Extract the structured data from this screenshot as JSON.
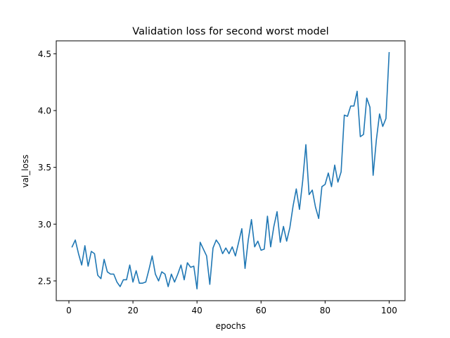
{
  "chart_data": {
    "type": "line",
    "title": "Validation loss for second worst model",
    "xlabel": "epochs",
    "ylabel": "val_loss",
    "xlim": [
      -3.95,
      104.95
    ],
    "ylim": [
      2.326,
      4.614
    ],
    "xticks": [
      0,
      20,
      40,
      60,
      80,
      100
    ],
    "yticks": [
      2.5,
      3.0,
      3.5,
      4.0,
      4.5
    ],
    "xtick_labels": [
      "0",
      "20",
      "40",
      "60",
      "80",
      "100"
    ],
    "ytick_labels": [
      "2.5",
      "3.0",
      "3.5",
      "4.0",
      "4.5"
    ],
    "grid": false,
    "legend": null,
    "series": [
      {
        "color": "#1f77b4",
        "x": [
          1,
          2,
          3,
          4,
          5,
          6,
          7,
          8,
          9,
          10,
          11,
          12,
          13,
          14,
          15,
          16,
          17,
          18,
          19,
          20,
          21,
          22,
          23,
          24,
          25,
          26,
          27,
          28,
          29,
          30,
          31,
          32,
          33,
          34,
          35,
          36,
          37,
          38,
          39,
          40,
          41,
          42,
          43,
          44,
          45,
          46,
          47,
          48,
          49,
          50,
          51,
          52,
          53,
          54,
          55,
          56,
          57,
          58,
          59,
          60,
          61,
          62,
          63,
          64,
          65,
          66,
          67,
          68,
          69,
          70,
          71,
          72,
          73,
          74,
          75,
          76,
          77,
          78,
          79,
          80,
          81,
          82,
          83,
          84,
          85,
          86,
          87,
          88,
          89,
          90,
          91,
          92,
          93,
          94,
          95,
          96,
          97,
          98,
          99,
          100
        ],
        "values": [
          2.8,
          2.86,
          2.74,
          2.64,
          2.81,
          2.63,
          2.76,
          2.74,
          2.55,
          2.52,
          2.69,
          2.58,
          2.56,
          2.56,
          2.49,
          2.45,
          2.51,
          2.51,
          2.64,
          2.49,
          2.59,
          2.48,
          2.48,
          2.49,
          2.6,
          2.72,
          2.56,
          2.5,
          2.58,
          2.56,
          2.45,
          2.56,
          2.49,
          2.56,
          2.64,
          2.51,
          2.66,
          2.62,
          2.63,
          2.43,
          2.84,
          2.78,
          2.72,
          2.47,
          2.79,
          2.86,
          2.82,
          2.74,
          2.79,
          2.74,
          2.8,
          2.72,
          2.84,
          2.96,
          2.61,
          2.86,
          3.04,
          2.8,
          2.85,
          2.77,
          2.78,
          3.07,
          2.8,
          2.98,
          3.11,
          2.84,
          2.98,
          2.85,
          2.97,
          3.16,
          3.31,
          3.13,
          3.38,
          3.7,
          3.26,
          3.3,
          3.15,
          3.05,
          3.33,
          3.35,
          3.45,
          3.33,
          3.52,
          3.37,
          3.46,
          3.96,
          3.95,
          4.04,
          4.04,
          4.17,
          3.77,
          3.79,
          4.11,
          4.03,
          3.43,
          3.74,
          3.97,
          3.86,
          3.93,
          4.51
        ]
      }
    ]
  }
}
